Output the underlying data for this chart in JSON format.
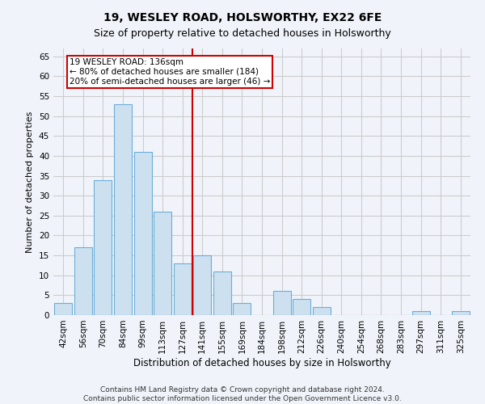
{
  "title": "19, WESLEY ROAD, HOLSWORTHY, EX22 6FE",
  "subtitle": "Size of property relative to detached houses in Holsworthy",
  "xlabel": "Distribution of detached houses by size in Holsworthy",
  "ylabel": "Number of detached properties",
  "categories": [
    "42sqm",
    "56sqm",
    "70sqm",
    "84sqm",
    "99sqm",
    "113sqm",
    "127sqm",
    "141sqm",
    "155sqm",
    "169sqm",
    "184sqm",
    "198sqm",
    "212sqm",
    "226sqm",
    "240sqm",
    "254sqm",
    "268sqm",
    "283sqm",
    "297sqm",
    "311sqm",
    "325sqm"
  ],
  "values": [
    3,
    17,
    34,
    53,
    41,
    26,
    13,
    15,
    11,
    3,
    0,
    6,
    4,
    2,
    0,
    0,
    0,
    0,
    1,
    0,
    1
  ],
  "bar_color": "#cce0f0",
  "bar_edge_color": "#6baed6",
  "bar_linewidth": 0.8,
  "property_line_x": 6.5,
  "property_label": "19 WESLEY ROAD: 136sqm",
  "annotation_line1": "← 80% of detached houses are smaller (184)",
  "annotation_line2": "20% of semi-detached houses are larger (46) →",
  "annotation_box_color": "#ffffff",
  "annotation_box_edge_color": "#cc0000",
  "property_line_color": "#cc0000",
  "grid_color": "#cccccc",
  "background_color": "#f0f4fa",
  "ylim": [
    0,
    67
  ],
  "yticks": [
    0,
    5,
    10,
    15,
    20,
    25,
    30,
    35,
    40,
    45,
    50,
    55,
    60,
    65
  ],
  "footer1": "Contains HM Land Registry data © Crown copyright and database right 2024.",
  "footer2": "Contains public sector information licensed under the Open Government Licence v3.0.",
  "title_fontsize": 10,
  "subtitle_fontsize": 9,
  "xlabel_fontsize": 8.5,
  "ylabel_fontsize": 8,
  "tick_fontsize": 7.5,
  "footer_fontsize": 6.5,
  "annot_fontsize": 7.5
}
